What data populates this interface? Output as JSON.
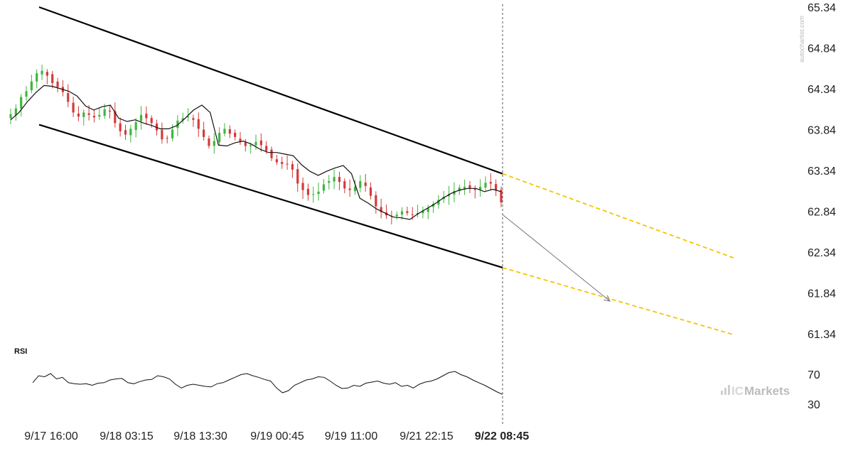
{
  "chart_data": {
    "type": "candlestick",
    "instrument_note": "",
    "y_axis": {
      "ticks": [
        "65.34",
        "64.84",
        "64.34",
        "63.84",
        "63.34",
        "62.84",
        "62.34",
        "61.84",
        "61.34"
      ],
      "ylim": [
        61.1,
        65.34
      ]
    },
    "x_axis": {
      "ticks": [
        "9/17 16:00",
        "9/18 03:15",
        "9/18 13:30",
        "9/19 00:45",
        "9/19 11:00",
        "9/21 22:15",
        "9/22 08:45"
      ],
      "highlighted_tick": "9/22 08:45"
    },
    "watermark_vertical": "autochartist.com",
    "brand": "ICMarkets",
    "brand_parts": {
      "light": "IC",
      "main": "Markets"
    },
    "price_path": [
      64.03,
      64.1,
      64.24,
      64.31,
      64.43,
      64.53,
      64.56,
      64.5,
      64.41,
      64.36,
      64.3,
      64.18,
      64.05,
      64.0,
      64.05,
      64.02,
      63.99,
      64.02,
      64.09,
      64.06,
      63.92,
      63.82,
      63.78,
      63.85,
      63.93,
      64.02,
      63.98,
      63.92,
      63.83,
      63.72,
      63.73,
      63.84,
      63.95,
      63.98,
      64.0,
      63.96,
      63.85,
      63.75,
      63.64,
      63.7,
      63.8,
      63.85,
      63.79,
      63.75,
      63.69,
      63.64,
      63.65,
      63.69,
      63.65,
      63.58,
      63.49,
      63.44,
      63.42,
      63.42,
      63.35,
      63.18,
      63.1,
      63.04,
      63.05,
      63.08,
      63.17,
      63.21,
      63.26,
      63.2,
      63.12,
      63.1,
      63.14,
      63.21,
      63.15,
      63.03,
      62.9,
      62.83,
      62.79,
      62.78,
      62.8,
      62.84,
      62.82,
      62.8,
      62.82,
      62.85,
      62.88,
      62.93,
      62.98,
      63.02,
      63.05,
      63.09,
      63.13,
      63.14,
      63.12,
      63.1,
      63.14,
      63.19,
      63.18,
      63.1,
      62.95
    ],
    "ma_path": [
      63.96,
      64.05,
      64.18,
      64.29,
      64.38,
      64.37,
      64.34,
      64.31,
      64.25,
      64.13,
      64.08,
      64.12,
      64.14,
      63.98,
      63.94,
      63.96,
      63.92,
      63.89,
      63.85,
      63.85,
      63.89,
      63.98,
      64.08,
      64.14,
      64.05,
      63.65,
      63.64,
      63.68,
      63.7,
      63.66,
      63.6,
      63.56,
      63.56,
      63.54,
      63.52,
      63.41,
      63.33,
      63.28,
      63.33,
      63.37,
      63.4,
      63.3,
      63.0,
      62.94,
      62.87,
      62.82,
      62.77,
      62.76,
      62.74,
      62.81,
      62.87,
      62.93,
      63.0,
      63.06,
      63.1,
      63.12,
      63.12,
      63.08,
      63.11,
      63.08
    ],
    "channel": {
      "upper_line": {
        "start_price": 65.34,
        "end_price": 63.3
      },
      "lower_line": {
        "start_price": 63.9,
        "end_price": 62.15
      },
      "upper_projection_end": 62.27,
      "lower_projection_end": 61.33,
      "forecast_target": 61.74
    },
    "rsi": {
      "label": "RSI",
      "level_labels": [
        "70",
        "30"
      ],
      "levels": [
        70,
        30
      ],
      "values": [
        55,
        68,
        66,
        72,
        62,
        65,
        55,
        53,
        52,
        53,
        50,
        54,
        55,
        60,
        62,
        63,
        55,
        53,
        57,
        60,
        61,
        68,
        66,
        62,
        52,
        45,
        50,
        52,
        50,
        48,
        47,
        53,
        55,
        60,
        65,
        70,
        72,
        68,
        65,
        61,
        58,
        45,
        36,
        40,
        50,
        55,
        60,
        62,
        66,
        65,
        58,
        50,
        44,
        45,
        50,
        48,
        54,
        56,
        58,
        54,
        52,
        55,
        48,
        50,
        45,
        52,
        56,
        58,
        62,
        68,
        74,
        76,
        70,
        66,
        60,
        55,
        50,
        44,
        38,
        33
      ]
    }
  }
}
